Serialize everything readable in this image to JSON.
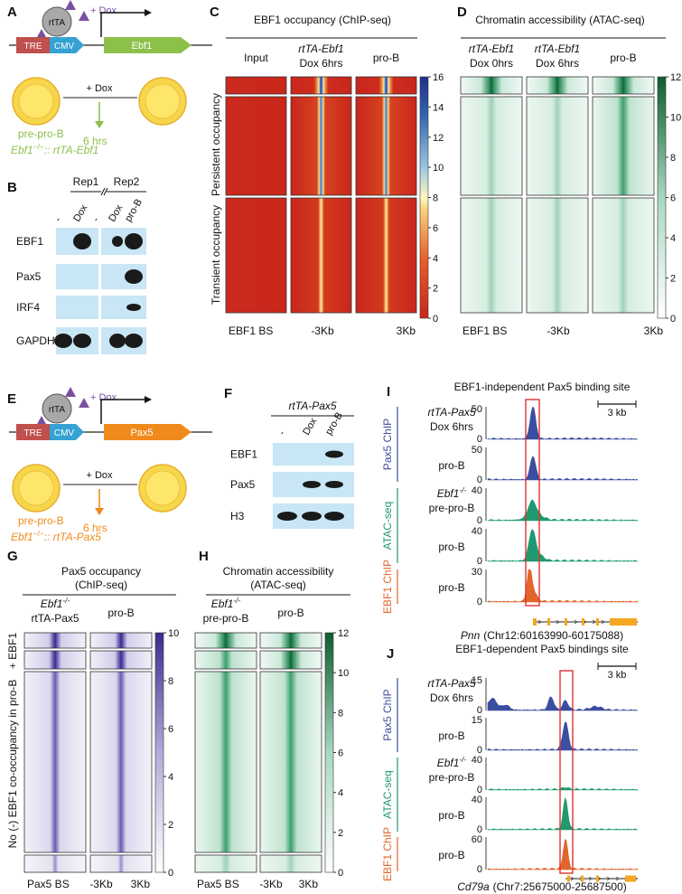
{
  "A": {
    "label": "A",
    "rtta": "rtTA",
    "dox": "+ Dox",
    "tre": "TRE",
    "cmv": "CMV",
    "gene": "Ebf1",
    "treatment": "+ Dox",
    "time": "6 hrs",
    "cell": "pre-pro-B",
    "genotype": {
      "gene": "Ebf1",
      "allele": "−/−",
      "transgene": ":: rtTA-Ebf1"
    }
  },
  "B": {
    "label": "B",
    "groups": [
      "Rep1",
      "Rep2"
    ],
    "lanes": [
      "-",
      "Dox",
      "-",
      "Dox",
      "pro-B"
    ],
    "rows": [
      "EBF1",
      "Pax5",
      "IRF4",
      "GAPDH"
    ]
  },
  "C": {
    "label": "C",
    "title": "EBF1 occupancy (ChIP-seq)",
    "columns": [
      [
        "Input"
      ],
      [
        "rtTA-Ebf1",
        "Dox 6hrs"
      ],
      [
        "pro-B"
      ]
    ],
    "row_groups": [
      "Persistent occupancy",
      "Transient occupancy"
    ],
    "colorbar_ticks": [
      0,
      2,
      4,
      6,
      8,
      10,
      12,
      14,
      16
    ],
    "x_labels": [
      "EBF1 BS",
      "-3Kb",
      "3Kb"
    ]
  },
  "D": {
    "label": "D",
    "title": "Chromatin accessibility (ATAC-seq)",
    "columns": [
      [
        "rtTA-Ebf1",
        "Dox 0hrs"
      ],
      [
        "rtTA-Ebf1",
        "Dox 6hrs"
      ],
      [
        "pro-B"
      ]
    ],
    "colorbar_ticks": [
      0,
      2,
      4,
      6,
      8,
      10,
      12
    ],
    "x_labels": [
      "EBF1 BS",
      "-3Kb",
      "3Kb"
    ]
  },
  "E": {
    "label": "E",
    "rtta": "rtTA",
    "dox": "+ Dox",
    "tre": "TRE",
    "cmv": "CMV",
    "gene": "Pax5",
    "treatment": "+ Dox",
    "time": "6 hrs",
    "cell": "pre-pro-B",
    "genotype": {
      "gene": "Ebf1",
      "allele": "−/−",
      "transgene": ":: rtTA-Pax5"
    }
  },
  "F": {
    "label": "F",
    "group": "rtTA-Pax5",
    "lanes": [
      "-",
      "Dox",
      "pro-B"
    ],
    "rows": [
      "EBF1",
      "Pax5",
      "H3"
    ]
  },
  "G": {
    "label": "G",
    "title": [
      "Pax5 occupancy",
      "(ChIP-seq)"
    ],
    "columns": [
      [
        {
          "gene": "Ebf1",
          "allele": "-/-"
        },
        "rtTA-Pax5"
      ],
      [
        "pro-B"
      ]
    ],
    "row_groups": [
      "+ EBF1",
      "No (-) EBF1 co-occupancy in pro-B"
    ],
    "colorbar_ticks": [
      0,
      2,
      4,
      6,
      8,
      10
    ],
    "x_labels": [
      "Pax5 BS",
      "-3Kb",
      "3Kb"
    ]
  },
  "H": {
    "label": "H",
    "title": [
      "Chromatin accessibility",
      "(ATAC-seq)"
    ],
    "columns": [
      [
        {
          "gene": "Ebf1",
          "allele": "-/-"
        },
        "pre-pro-B"
      ],
      [
        "pro-B"
      ]
    ],
    "colorbar_ticks": [
      0,
      2,
      4,
      6,
      8,
      10,
      12
    ],
    "x_labels": [
      "Pax5 BS",
      "-3Kb",
      "3Kb"
    ]
  },
  "I": {
    "label": "I",
    "title": "EBF1-independent Pax5 binding site",
    "scale": "3 kb",
    "groups": [
      {
        "name": "Pax5 ChIP",
        "color": "#3b4ea0"
      },
      {
        "name": "ATAC-seq",
        "color": "#1f9a6e"
      },
      {
        "name": "EBF1 ChIP",
        "color": "#e2652a"
      }
    ],
    "tracks": [
      {
        "sample": [
          "rtTA-Pax5",
          "Dox 6hrs"
        ],
        "ymax": 50,
        "ymin": 0
      },
      {
        "sample": [
          "pro-B"
        ],
        "ymax": 50,
        "ymin": 0
      },
      {
        "sample": [
          {
            "gene": "Ebf1",
            "allele": "-/-"
          },
          "pre-pro-B"
        ],
        "ymax": 40,
        "ymin": 0
      },
      {
        "sample": [
          "pro-B"
        ],
        "ymax": 40,
        "ymin": 0
      },
      {
        "sample": [
          "pro-B"
        ],
        "ymax": 30,
        "ymin": 0
      }
    ],
    "locus": {
      "gene": "Pnn",
      "coords": "(Chr12:60163990-60175088)"
    }
  },
  "J": {
    "label": "J",
    "title": "EBF1-dependent Pax5 bindings site",
    "scale": "3 kb",
    "groups": [
      {
        "name": "Pax5 ChIP",
        "color": "#3b4ea0"
      },
      {
        "name": "ATAC-seq",
        "color": "#1f9a6e"
      },
      {
        "name": "EBF1 ChIP",
        "color": "#e2652a"
      }
    ],
    "tracks": [
      {
        "sample": [
          "rtTA-Pax5",
          "Dox 6hrs"
        ],
        "ymax": 15,
        "ymin": 0
      },
      {
        "sample": [
          "pro-B"
        ],
        "ymax": 15,
        "ymin": 0
      },
      {
        "sample": [
          {
            "gene": "Ebf1",
            "allele": "-/-"
          },
          "pre-pro-B"
        ],
        "ymax": 40,
        "ymin": 0
      },
      {
        "sample": [
          "pro-B"
        ],
        "ymax": 40,
        "ymin": 0
      },
      {
        "sample": [
          "pro-B"
        ],
        "ymax": 60,
        "ymin": 0
      }
    ],
    "locus": {
      "gene": "Cd79a",
      "coords": "(Chr7:25675000-25687500)"
    }
  }
}
